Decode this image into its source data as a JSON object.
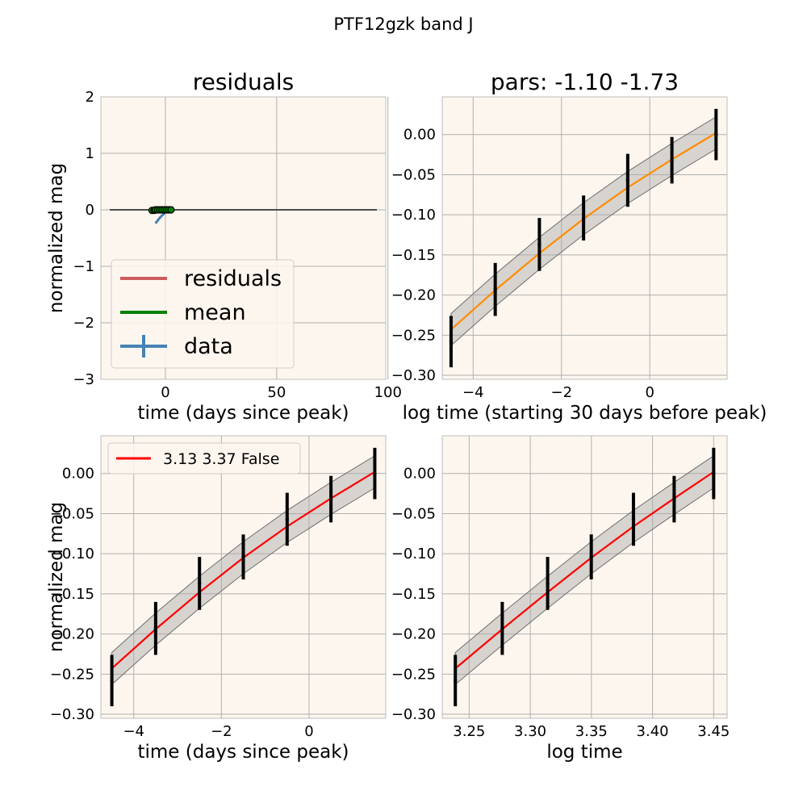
{
  "suptitle": "PTF12gzk band J",
  "colors": {
    "panel_bg": "#fdf6ee",
    "grid": "#b0b0b0",
    "band_fill": "#a9a9a9",
    "band_edge": "#6e6e6e",
    "residuals": "#cd5c5c",
    "mean": "#008000",
    "data": "#4682b4",
    "fit_top_right": "#ff8c00",
    "fit_bottom": "#ff0000",
    "errorbar": "#000000",
    "zero_line": "#4d4d4d"
  },
  "chart_data": [
    {
      "type": "line",
      "title": "residuals",
      "xlabel": "time (days since peak)",
      "ylabel": "normalized mag",
      "xlim": [
        -29,
        99
      ],
      "ylim": [
        -3,
        2
      ],
      "xticks": [
        0,
        50,
        100
      ],
      "yticks": [
        -3,
        -2,
        -1,
        0,
        1,
        2
      ],
      "grid": true,
      "legend": {
        "placement": "lower-left",
        "entries": [
          "residuals",
          "mean",
          "data"
        ]
      },
      "zero_line": {
        "x": [
          -25,
          95
        ],
        "y": 0
      },
      "series": [
        {
          "name": "residuals",
          "x": [
            -4.5,
            -3.5,
            -2.5,
            -1.5,
            -0.5,
            0.5,
            1.5
          ],
          "y": [
            0,
            0,
            0,
            0,
            0,
            0,
            0
          ]
        },
        {
          "name": "mean",
          "x": [
            -4.5,
            -3.5,
            -2.5,
            -1.5,
            -0.5,
            0.5,
            1.5
          ],
          "y": [
            -0.03,
            -0.02,
            -0.01,
            0.0,
            0.01,
            0.02,
            0.02
          ]
        },
        {
          "name": "data",
          "x": [
            -4.5,
            -3.5,
            -2.5,
            -1.5,
            -0.5,
            0.5,
            1.5
          ],
          "y": [
            -0.24,
            -0.19,
            -0.14,
            -0.1,
            -0.06,
            -0.03,
            0.0
          ]
        }
      ],
      "points": {
        "x": [
          -6,
          -5,
          -4.5,
          -3.5,
          -2.5,
          -1.5,
          -0.5,
          0.5,
          1.5,
          2.5
        ],
        "y": [
          -0.01,
          -0.01,
          0.0,
          0.0,
          0.0,
          0.0,
          0.0,
          0.0,
          0.0,
          0.0
        ]
      }
    },
    {
      "type": "line",
      "title": "pars: -1.10 -1.73",
      "xlabel": "log time (starting 30 days before peak)",
      "ylabel": "",
      "xlim": [
        -4.7,
        1.75
      ],
      "ylim": [
        -0.305,
        0.047
      ],
      "xticks": [
        -4,
        -2,
        0
      ],
      "yticks": [
        -0.3,
        -0.25,
        -0.2,
        -0.15,
        -0.1,
        -0.05,
        0.0
      ],
      "ytick_labels": [
        "−0.30",
        "−0.25",
        "−0.20",
        "−0.15",
        "−0.10",
        "−0.05",
        "0.00"
      ],
      "grid": true,
      "fit": {
        "x": [
          -4.5,
          -3.5,
          -2.5,
          -1.5,
          -0.5,
          0.5,
          1.5
        ],
        "y": [
          -0.243,
          -0.194,
          -0.148,
          -0.105,
          -0.066,
          -0.031,
          0.002
        ]
      },
      "band_halfwidth": 0.02,
      "errorbars": {
        "x": [
          -4.5,
          -3.5,
          -2.5,
          -1.5,
          -0.5,
          0.5,
          1.5
        ],
        "y": [
          -0.258,
          -0.193,
          -0.137,
          -0.104,
          -0.057,
          -0.032,
          0.0
        ],
        "err": [
          0.032,
          0.033,
          0.033,
          0.028,
          0.033,
          0.029,
          0.032
        ]
      }
    },
    {
      "type": "line",
      "title": "",
      "xlabel": "time (days since peak)",
      "ylabel": "normalized mag",
      "xlim": [
        -4.75,
        1.75
      ],
      "ylim": [
        -0.305,
        0.047
      ],
      "xticks": [
        -4,
        -2,
        0
      ],
      "yticks": [
        -0.3,
        -0.25,
        -0.2,
        -0.15,
        -0.1,
        -0.05,
        0.0
      ],
      "ytick_labels": [
        "−0.30",
        "−0.25",
        "−0.20",
        "−0.15",
        "−0.10",
        "−0.05",
        "0.00"
      ],
      "grid": true,
      "legend": {
        "placement": "top-left",
        "entries": [
          "3.13 3.37 False"
        ]
      },
      "fit": {
        "x": [
          -4.5,
          -3.5,
          -2.5,
          -1.5,
          -0.5,
          0.5,
          1.5
        ],
        "y": [
          -0.243,
          -0.194,
          -0.148,
          -0.105,
          -0.066,
          -0.031,
          0.002
        ]
      },
      "band_halfwidth": 0.02,
      "errorbars": {
        "x": [
          -4.5,
          -3.5,
          -2.5,
          -1.5,
          -0.5,
          0.5,
          1.5
        ],
        "y": [
          -0.258,
          -0.193,
          -0.137,
          -0.104,
          -0.057,
          -0.032,
          0.0
        ],
        "err": [
          0.032,
          0.033,
          0.033,
          0.028,
          0.033,
          0.029,
          0.032
        ]
      }
    },
    {
      "type": "line",
      "title": "",
      "xlabel": "log time",
      "ylabel": "",
      "xlim": [
        3.228,
        3.461
      ],
      "ylim": [
        -0.305,
        0.047
      ],
      "xticks": [
        3.25,
        3.3,
        3.35,
        3.4,
        3.45
      ],
      "xtick_labels": [
        "3.25",
        "3.30",
        "3.35",
        "3.40",
        "3.45"
      ],
      "yticks": [
        -0.3,
        -0.25,
        -0.2,
        -0.15,
        -0.1,
        -0.05,
        0.0
      ],
      "ytick_labels": [
        "−0.30",
        "−0.25",
        "−0.20",
        "−0.15",
        "−0.10",
        "−0.05",
        "0.00"
      ],
      "grid": true,
      "fit": {
        "x": [
          3.2387,
          3.2771,
          3.3142,
          3.3499,
          3.3844,
          3.4177,
          3.45
        ],
        "y": [
          -0.243,
          -0.194,
          -0.148,
          -0.105,
          -0.066,
          -0.031,
          0.002
        ]
      },
      "band_halfwidth": 0.02,
      "errorbars": {
        "x": [
          3.2387,
          3.2771,
          3.3142,
          3.3499,
          3.3844,
          3.4177,
          3.45
        ],
        "y": [
          -0.258,
          -0.193,
          -0.137,
          -0.104,
          -0.057,
          -0.032,
          0.0
        ],
        "err": [
          0.032,
          0.033,
          0.033,
          0.028,
          0.033,
          0.029,
          0.032
        ]
      }
    }
  ]
}
